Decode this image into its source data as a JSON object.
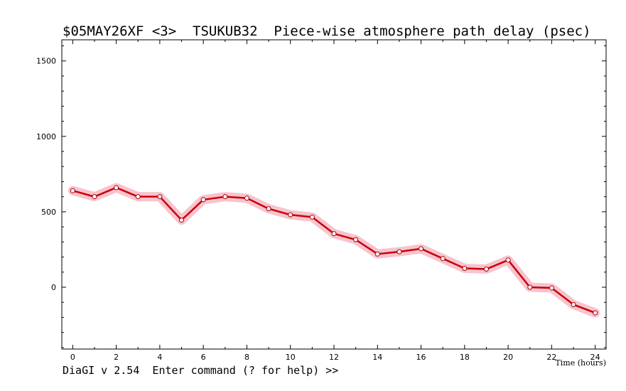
{
  "chart_data": {
    "type": "line",
    "title": "$05MAY26XF <3>  TSUKUB32  Piece-wise atmosphere path delay (psec)",
    "xlabel": "Time (hours)",
    "ylabel": "",
    "xlim": [
      -0.5,
      24.5
    ],
    "ylim": [
      -410,
      1640
    ],
    "x_ticks": [
      0,
      2,
      4,
      6,
      8,
      10,
      12,
      14,
      16,
      18,
      20,
      22,
      24
    ],
    "y_ticks": [
      0,
      500,
      1000,
      1500
    ],
    "grid": false,
    "series": [
      {
        "color": "#cc0000",
        "band_color": "#f7b8c8",
        "x": [
          0,
          1,
          2,
          3,
          4,
          5,
          6,
          7,
          8,
          9,
          10,
          11,
          12,
          13,
          14,
          15,
          16,
          17,
          18,
          19,
          20,
          21,
          22,
          23,
          24
        ],
        "y": [
          640,
          600,
          660,
          600,
          600,
          445,
          580,
          600,
          590,
          520,
          480,
          465,
          355,
          315,
          220,
          235,
          255,
          190,
          125,
          120,
          180,
          0,
          -5,
          -115,
          -170
        ]
      }
    ]
  },
  "status_bar": {
    "prompt": "DiaGI v 2.54  Enter command (? for help) >>"
  }
}
